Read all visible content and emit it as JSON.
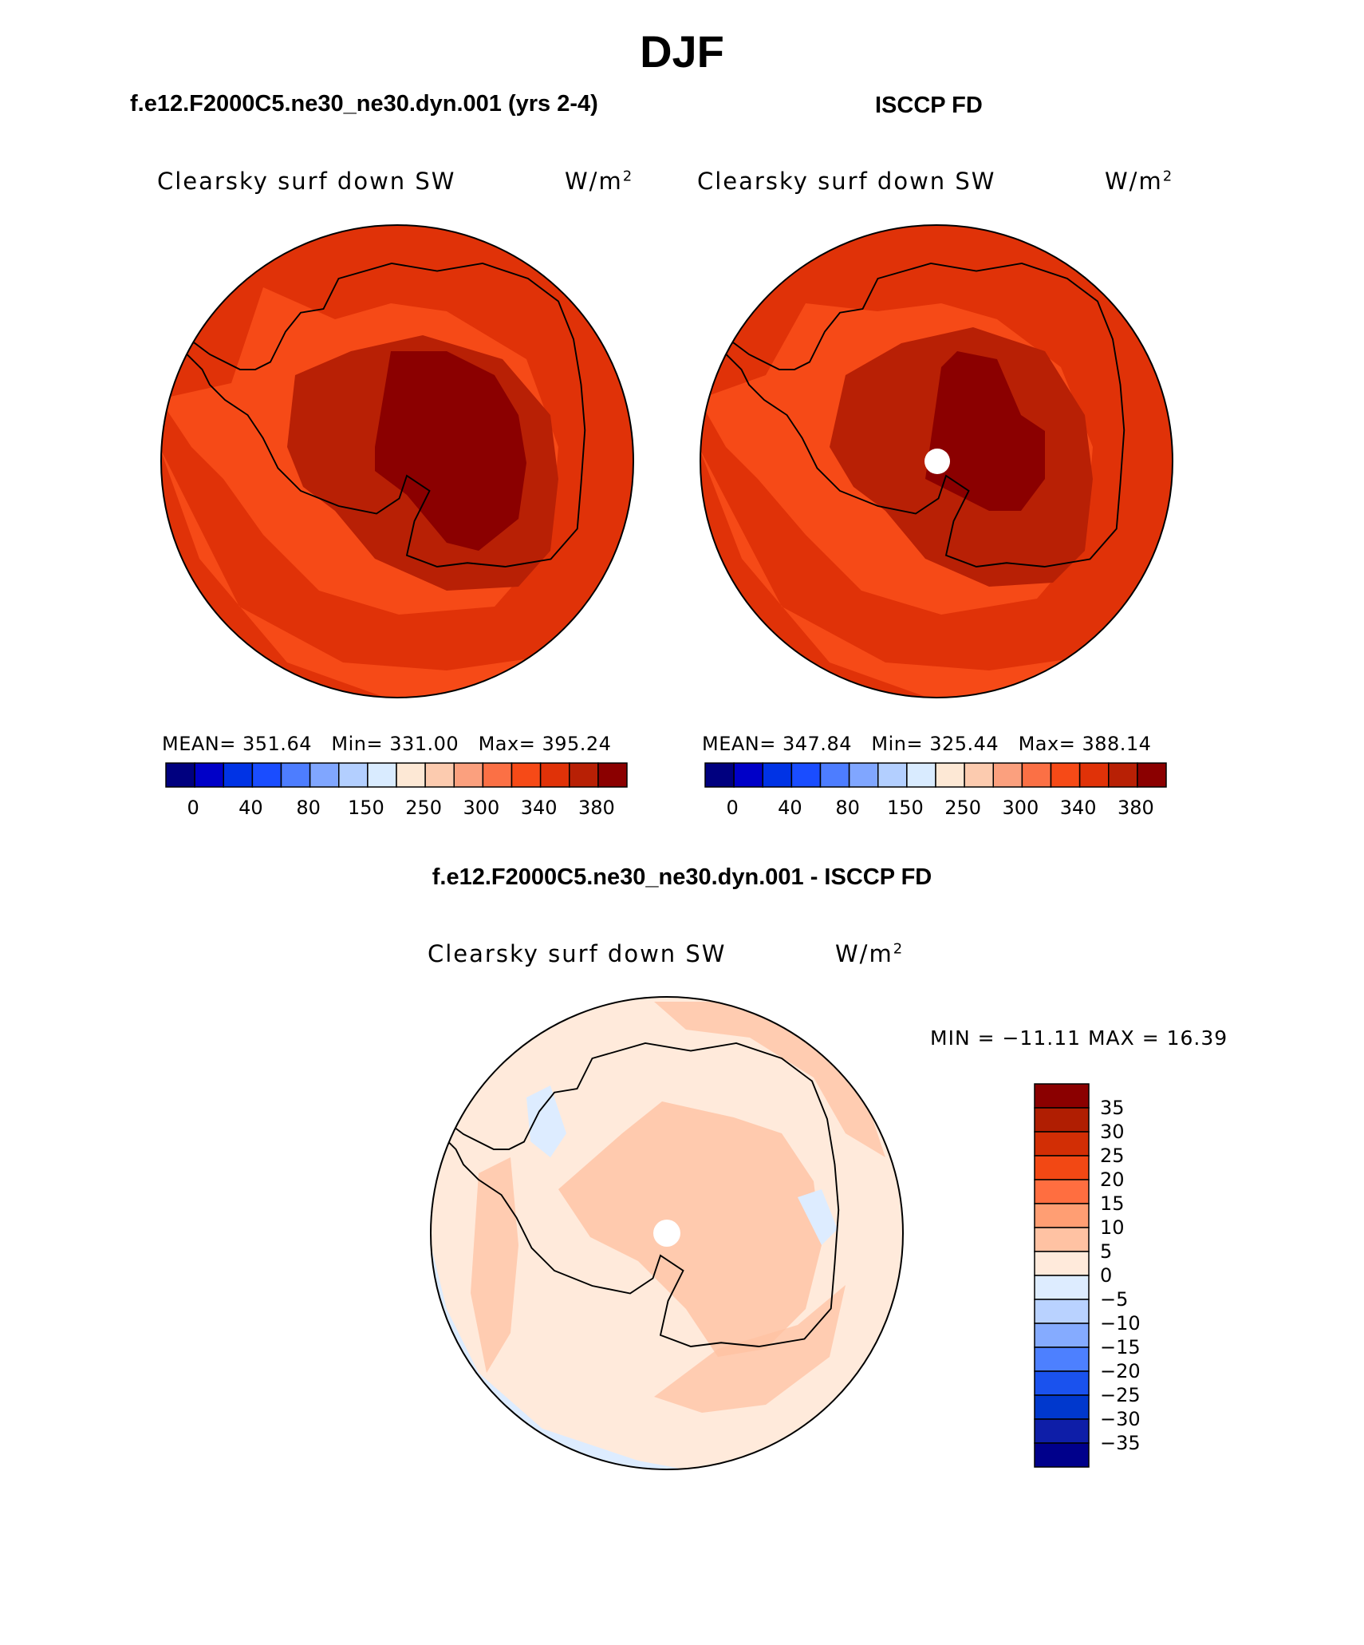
{
  "page": {
    "title": "DJF",
    "comparison_title": "f.e12.F2000C5.ne30_ne30.dyn.001 - ISCCP FD"
  },
  "colors": {
    "abs_palette": [
      "#00007f",
      "#0000c8",
      "#0033e5",
      "#1a4dff",
      "#4d7dff",
      "#80a6ff",
      "#b3cfff",
      "#d9ebff",
      "#fde8d5",
      "#fccbaf",
      "#fba07e",
      "#fb7045",
      "#f64a17",
      "#e03208",
      "#b82005",
      "#8b0000"
    ],
    "diff_palette": [
      "#00008b",
      "#0e1ea8",
      "#0038cd",
      "#1a52ee",
      "#4d80ff",
      "#85abff",
      "#b9d2ff",
      "#ddecff",
      "#ffeadb",
      "#ffc2a3",
      "#ff9e73",
      "#ff6e40",
      "#f24814",
      "#d22e05",
      "#b01e02",
      "#8b0000"
    ]
  },
  "panels": [
    {
      "id": "model",
      "heading": "f.e12.F2000C5.ne30_ne30.dyn.001 (yrs 2-4)",
      "variable": "Clearsky surf down SW",
      "units": "W/m",
      "units_sup": "2",
      "stats": {
        "mean_label": "MEAN=",
        "mean": "351.64",
        "min_label": "Min=",
        "min": "331.00",
        "max_label": "Max=",
        "max": "395.24"
      },
      "colorbar_ticks": [
        "0",
        "40",
        "80",
        "150",
        "250",
        "300",
        "340",
        "380"
      ]
    },
    {
      "id": "obs",
      "heading": "ISCCP FD",
      "variable": "Clearsky surf down SW",
      "units": "W/m",
      "units_sup": "2",
      "stats": {
        "mean_label": "MEAN=",
        "mean": "347.84",
        "min_label": "Min=",
        "min": "325.44",
        "max_label": "Max=",
        "max": "388.14"
      },
      "colorbar_ticks": [
        "0",
        "40",
        "80",
        "150",
        "250",
        "300",
        "340",
        "380"
      ]
    }
  ],
  "difference": {
    "variable": "Clearsky surf down SW",
    "units": "W/m",
    "units_sup": "2",
    "minmax": "MIN = −11.11 MAX =  16.39",
    "colorbar_ticks": [
      "35",
      "30",
      "25",
      "20",
      "15",
      "10",
      "5",
      "0",
      "−5",
      "−10",
      "−15",
      "−20",
      "−25",
      "−30",
      "−35"
    ]
  },
  "chart_data": [
    {
      "type": "heatmap",
      "title": "Clearsky surf down SW",
      "units": "W/m2",
      "projection": "south polar stereographic",
      "source": "f.e12.F2000C5.ne30_ne30.dyn.001 (yrs 2-4)",
      "mean": 351.64,
      "min": 331.0,
      "max": 395.24,
      "contour_levels": [
        0,
        20,
        40,
        60,
        80,
        100,
        150,
        200,
        250,
        275,
        300,
        320,
        340,
        360,
        380
      ],
      "fields": [
        {
          "region": "outer ocean ring",
          "value_range": [
            360,
            380
          ]
        },
        {
          "region": "Southern Ocean",
          "value_range": [
            340,
            360
          ]
        },
        {
          "region": "Antarctic coast",
          "value_range": [
            360,
            380
          ]
        },
        {
          "region": "Antarctic interior",
          "value_range": [
            380,
            400
          ]
        }
      ]
    },
    {
      "type": "heatmap",
      "title": "Clearsky surf down SW",
      "units": "W/m2",
      "projection": "south polar stereographic",
      "source": "ISCCP FD",
      "mean": 347.84,
      "min": 325.44,
      "max": 388.14,
      "contour_levels": [
        0,
        20,
        40,
        60,
        80,
        100,
        150,
        200,
        250,
        275,
        300,
        320,
        340,
        360,
        380
      ],
      "fields": [
        {
          "region": "outer ocean ring",
          "value_range": [
            360,
            380
          ]
        },
        {
          "region": "Southern Ocean",
          "value_range": [
            340,
            360
          ]
        },
        {
          "region": "Antarctic coast",
          "value_range": [
            360,
            380
          ]
        },
        {
          "region": "Antarctic interior",
          "value_range": [
            380,
            400
          ]
        },
        {
          "region": "pole",
          "value_range": null
        }
      ]
    },
    {
      "type": "heatmap",
      "title": "Clearsky surf down SW",
      "units": "W/m2",
      "projection": "south polar stereographic",
      "source": "f.e12.F2000C5.ne30_ne30.dyn.001 - ISCCP FD",
      "min": -11.11,
      "max": 16.39,
      "contour_levels": [
        -35,
        -30,
        -25,
        -20,
        -15,
        -10,
        -5,
        0,
        5,
        10,
        15,
        20,
        25,
        30,
        35
      ],
      "fields": [
        {
          "region": "most of domain",
          "value_range": [
            0,
            5
          ]
        },
        {
          "region": "Antarctic interior and ocean bands",
          "value_range": [
            5,
            10
          ]
        },
        {
          "region": "small ocean patches",
          "value_range": [
            -5,
            0
          ]
        }
      ]
    }
  ]
}
